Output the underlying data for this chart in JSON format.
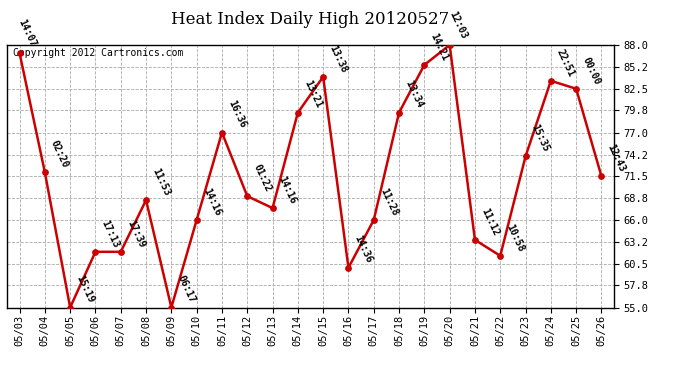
{
  "title": "Heat Index Daily High 20120527",
  "copyright": "Copyright 2012 Cartronics.com",
  "dates": [
    "05/03",
    "05/04",
    "05/05",
    "05/06",
    "05/07",
    "05/08",
    "05/09",
    "05/10",
    "05/11",
    "05/12",
    "05/13",
    "05/14",
    "05/15",
    "05/16",
    "05/17",
    "05/18",
    "05/19",
    "05/20",
    "05/21",
    "05/22",
    "05/23",
    "05/24",
    "05/25",
    "05/26"
  ],
  "values": [
    87.0,
    72.0,
    55.0,
    62.0,
    62.0,
    68.5,
    55.0,
    66.0,
    77.0,
    69.0,
    67.5,
    79.5,
    84.0,
    60.0,
    66.0,
    79.5,
    85.5,
    88.0,
    63.5,
    61.5,
    74.0,
    83.5,
    82.5,
    71.5
  ],
  "labels": [
    "14:07",
    "02:20",
    "15:19",
    "17:13",
    "17:39",
    "11:53",
    "06:17",
    "14:16",
    "16:36",
    "01:22",
    "14:16",
    "13:21",
    "13:38",
    "14:36",
    "11:28",
    "13:34",
    "14:21",
    "12:03",
    "11:12",
    "10:58",
    "15:35",
    "22:51",
    "00:00",
    "12:43"
  ],
  "ylim": [
    55.0,
    88.0
  ],
  "yticks": [
    55.0,
    57.8,
    60.5,
    63.2,
    66.0,
    68.8,
    71.5,
    74.2,
    77.0,
    79.8,
    82.5,
    85.2,
    88.0
  ],
  "line_color": "#cc0000",
  "marker_color": "#cc0000",
  "background_color": "#ffffff",
  "grid_color": "#aaaaaa",
  "title_fontsize": 12,
  "label_fontsize": 7,
  "tick_fontsize": 7.5,
  "copyright_fontsize": 7
}
